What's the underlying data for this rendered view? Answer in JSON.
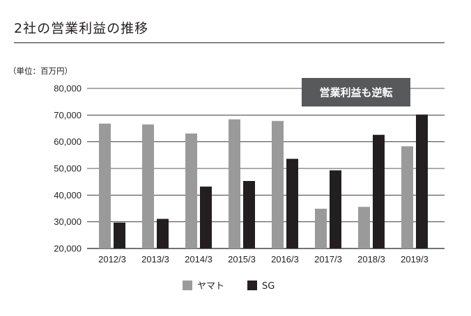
{
  "title": "2社の営業利益の推移",
  "colors": {
    "yamato": "#9a9a9a",
    "sg": "#231f20",
    "callout_bg": "#58595b",
    "grid": "#231f20"
  },
  "chart_data": {
    "type": "bar",
    "title": "2社の営業利益の推移",
    "unit_label": "（単位：百万円）",
    "xlabel": "",
    "ylabel": "",
    "categories": [
      "2012/3",
      "2013/3",
      "2014/3",
      "2015/3",
      "2016/3",
      "2017/3",
      "2018/3",
      "2019/3"
    ],
    "series": [
      {
        "name": "ヤマト",
        "values": [
          66800,
          66500,
          63100,
          68400,
          67800,
          34900,
          35600,
          58300
        ]
      },
      {
        "name": "SG",
        "values": [
          29700,
          31100,
          43200,
          45300,
          53600,
          49300,
          62600,
          70200
        ]
      }
    ],
    "ylim": [
      20000,
      80000
    ],
    "yticks": [
      20000,
      30000,
      40000,
      50000,
      60000,
      70000,
      80000
    ],
    "ytick_labels": [
      "20,000",
      "30,000",
      "40,000",
      "50,000",
      "60,000",
      "70,000",
      "80,000"
    ],
    "grid": true,
    "legend_position": "bottom-center",
    "annotation": "営業利益も逆転"
  }
}
